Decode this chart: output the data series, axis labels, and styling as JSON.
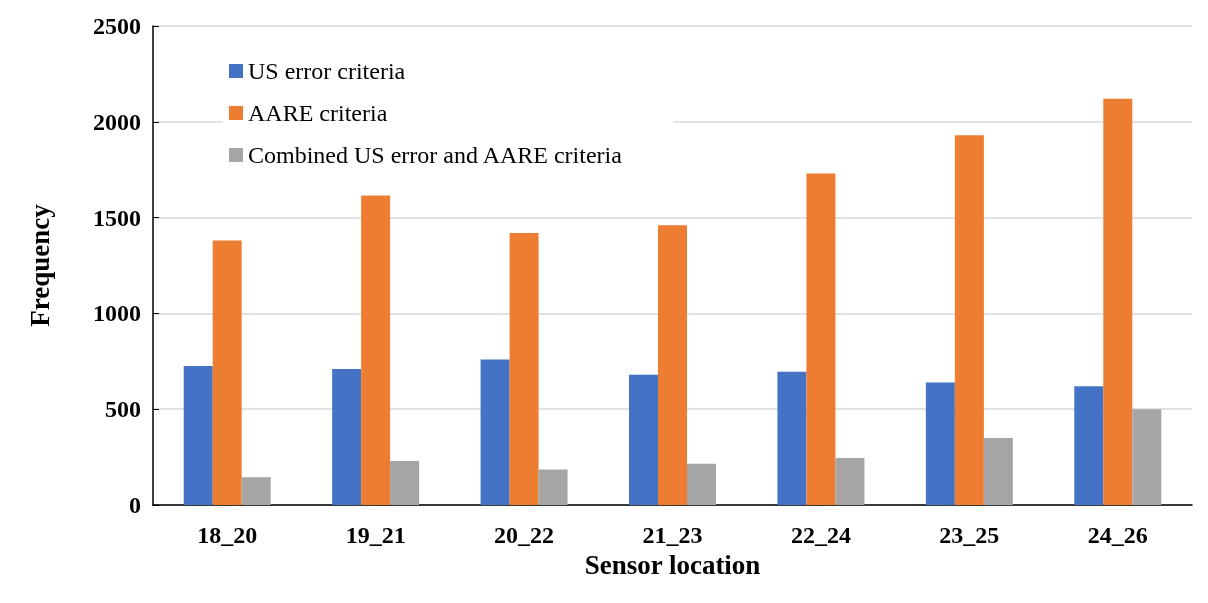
{
  "chart_data": {
    "type": "bar",
    "xlabel": "Sensor location",
    "ylabel": "Frequency",
    "categories": [
      "18_20",
      "19_21",
      "20_22",
      "21_23",
      "22_24",
      "23_25",
      "24_26"
    ],
    "series": [
      {
        "name": "US error criteria",
        "color": "#4472c4",
        "values": [
          725,
          710,
          760,
          680,
          695,
          640,
          620
        ]
      },
      {
        "name": "AARE criteria",
        "color": "#ed7d31",
        "values": [
          1380,
          1615,
          1420,
          1460,
          1730,
          1930,
          2120
        ]
      },
      {
        "name": "Combined US error and AARE criteria",
        "color": "#a5a5a5",
        "values": [
          145,
          230,
          185,
          215,
          245,
          350,
          500
        ]
      }
    ],
    "ylim": [
      0,
      2500
    ],
    "yticks": [
      0,
      500,
      1000,
      1500,
      2000,
      2500
    ],
    "grid": "y",
    "legend": "top left"
  }
}
